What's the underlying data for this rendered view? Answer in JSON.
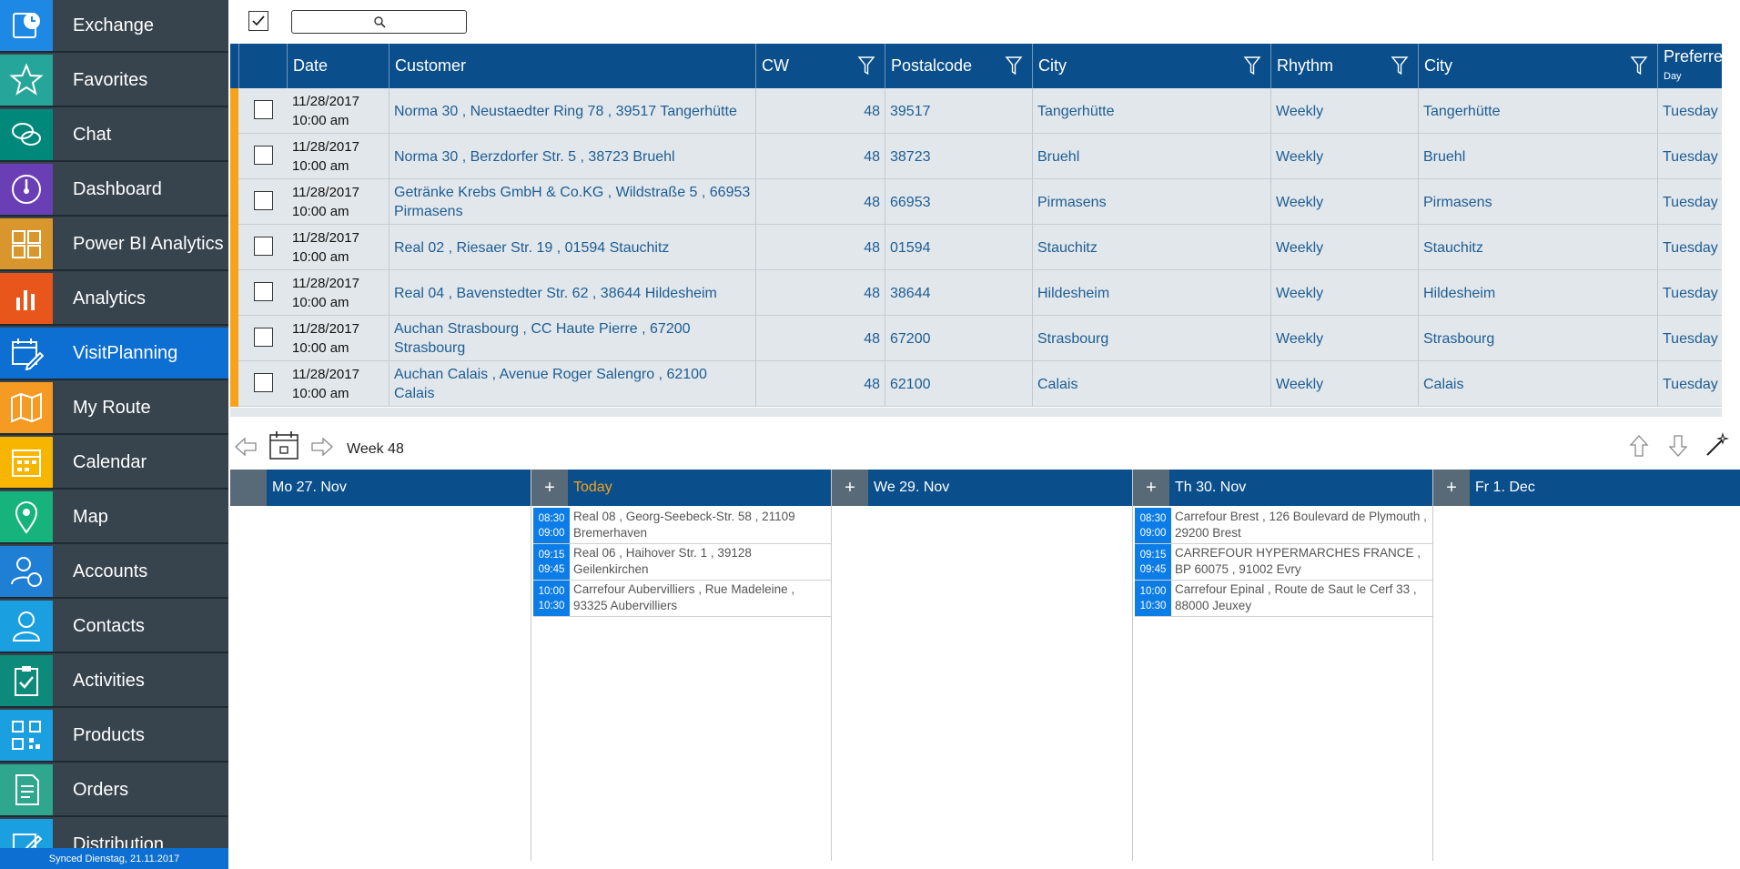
{
  "sidebar": {
    "items": [
      {
        "label": "Exchange",
        "icon": "exchange-icon",
        "color": "#1e88e5",
        "active": false
      },
      {
        "label": "Favorites",
        "icon": "star-icon",
        "color": "#26a69a",
        "active": false
      },
      {
        "label": "Chat",
        "icon": "chat-icon",
        "color": "#00897b",
        "active": false
      },
      {
        "label": "Dashboard",
        "icon": "gauge-icon",
        "color": "#6a3fb5",
        "active": false
      },
      {
        "label": "Power BI Analytics",
        "icon": "powerbi-icon",
        "color": "#d9962c",
        "active": false
      },
      {
        "label": "Analytics",
        "icon": "bar-chart-icon",
        "color": "#e8561c",
        "active": false
      },
      {
        "label": "VisitPlanning",
        "icon": "visit-planning-icon",
        "color": "#0c6fd1",
        "active": true
      },
      {
        "label": "My Route",
        "icon": "route-map-icon",
        "color": "#f59a23",
        "active": false
      },
      {
        "label": "Calendar",
        "icon": "calendar-icon",
        "color": "#f7b500",
        "active": false
      },
      {
        "label": "Map",
        "icon": "map-pin-icon",
        "color": "#16b37c",
        "active": false
      },
      {
        "label": "Accounts",
        "icon": "accounts-icon",
        "color": "#1e7fd4",
        "active": false
      },
      {
        "label": "Contacts",
        "icon": "contact-icon",
        "color": "#1a9fe0",
        "active": false
      },
      {
        "label": "Activities",
        "icon": "clipboard-check-icon",
        "color": "#0d8a7a",
        "active": false
      },
      {
        "label": "Products",
        "icon": "qr-code-icon",
        "color": "#1a9fe0",
        "active": false
      },
      {
        "label": "Orders",
        "icon": "order-icon",
        "color": "#2fa68e",
        "active": false
      },
      {
        "label": "Distribution",
        "icon": "distribution-icon",
        "color": "#1a9fe0",
        "active": false
      }
    ],
    "synced": "Synced Dienstag, 21.11.2017"
  },
  "grid": {
    "columns": {
      "date": "Date",
      "customer": "Customer",
      "cw": "CW",
      "postalcode": "Postalcode",
      "city": "City",
      "rhythm": "Rhythm",
      "city2": "City",
      "preferred": "Preferre",
      "preferred_sub": "Day"
    },
    "rows": [
      {
        "date": "11/28/2017",
        "time": "10:00 am",
        "customer": "Norma 30 , Neustaedter Ring 78 , 39517 Tangerhütte",
        "cw": "48",
        "postalcode": "39517",
        "city": "Tangerhütte",
        "rhythm": "Weekly",
        "city2": "Tangerhütte",
        "day": "Tuesday"
      },
      {
        "date": "11/28/2017",
        "time": "10:00 am",
        "customer": "Norma 30 , Berzdorfer Str. 5 , 38723 Bruehl",
        "cw": "48",
        "postalcode": "38723",
        "city": "Bruehl",
        "rhythm": "Weekly",
        "city2": "Bruehl",
        "day": "Tuesday"
      },
      {
        "date": "11/28/2017",
        "time": "10:00 am",
        "customer": "Getränke Krebs GmbH & Co.KG , Wildstraße 5 , 66953 Pirmasens",
        "cw": "48",
        "postalcode": "66953",
        "city": "Pirmasens",
        "rhythm": "Weekly",
        "city2": "Pirmasens",
        "day": "Tuesday"
      },
      {
        "date": "11/28/2017",
        "time": "10:00 am",
        "customer": "Real 02 , Riesaer Str. 19 , 01594 Stauchitz",
        "cw": "48",
        "postalcode": "01594",
        "city": "Stauchitz",
        "rhythm": "Weekly",
        "city2": "Stauchitz",
        "day": "Tuesday"
      },
      {
        "date": "11/28/2017",
        "time": "10:00 am",
        "customer": "Real 04 , Bavenstedter Str. 62 , 38644 Hildesheim",
        "cw": "48",
        "postalcode": "38644",
        "city": "Hildesheim",
        "rhythm": "Weekly",
        "city2": "Hildesheim",
        "day": "Tuesday"
      },
      {
        "date": "11/28/2017",
        "time": "10:00 am",
        "customer": "Auchan Strasbourg , CC Haute Pierre , 67200 Strasbourg",
        "cw": "48",
        "postalcode": "67200",
        "city": "Strasbourg",
        "rhythm": "Weekly",
        "city2": "Strasbourg",
        "day": "Tuesday"
      },
      {
        "date": "11/28/2017",
        "time": "10:00 am",
        "customer": "Auchan Calais , Avenue Roger Salengro , 62100 Calais",
        "cw": "48",
        "postalcode": "62100",
        "city": "Calais",
        "rhythm": "Weekly",
        "city2": "Calais",
        "day": "Tuesday"
      }
    ]
  },
  "week": {
    "label": "Week 48"
  },
  "calendar": {
    "days": [
      {
        "title": "Mo 27. Nov",
        "today": false,
        "has_add": false,
        "appointments": []
      },
      {
        "title": "Today",
        "today": true,
        "has_add": true,
        "appointments": [
          {
            "start": "08:30",
            "end": "09:00",
            "text": "Real 08 , Georg-Seebeck-Str. 58 , 21109 Bremerhaven"
          },
          {
            "start": "09:15",
            "end": "09:45",
            "text": "Real 06 , Haihover Str. 1 , 39128 Geilenkirchen"
          },
          {
            "start": "10:00",
            "end": "10:30",
            "text": "Carrefour Aubervilliers , Rue Madeleine , 93325 Aubervilliers"
          }
        ]
      },
      {
        "title": "We 29. Nov",
        "today": false,
        "has_add": true,
        "appointments": []
      },
      {
        "title": "Th 30. Nov",
        "today": false,
        "has_add": true,
        "appointments": [
          {
            "start": "08:30",
            "end": "09:00",
            "text": "Carrefour Brest , 126 Boulevard de Plymouth , 29200 Brest"
          },
          {
            "start": "09:15",
            "end": "09:45",
            "text": "CARREFOUR HYPERMARCHES FRANCE , BP 60075 , 91002 Evry"
          },
          {
            "start": "10:00",
            "end": "10:30",
            "text": "Carrefour Epinal , Route de Saut le Cerf 33 , 88000 Jeuxey"
          }
        ]
      },
      {
        "title": "Fr 1. Dec",
        "today": false,
        "has_add": true,
        "appointments": []
      }
    ]
  },
  "colors": {
    "header_blue": "#0a4f8c",
    "accent_blue": "#0c6fd1",
    "sidebar_bg": "#37434d",
    "row_marker": "#f7a21b",
    "today_text": "#f7a21b"
  }
}
